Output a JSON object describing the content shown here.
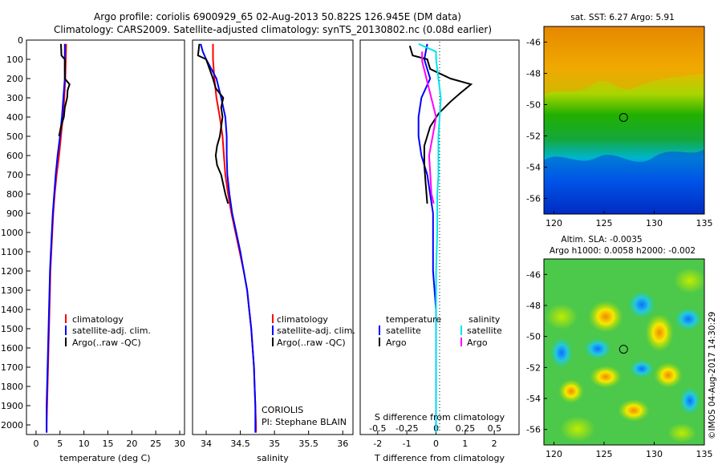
{
  "title_line1": "Argo profile: coriolis 6900929_65 02-Aug-2013 50.822S 126.945E (DM data)",
  "title_line2": "Climatology: CARS2009. Satellite-adjusted climatology: synTS_20130802.nc (0.08d earlier)",
  "colors": {
    "climatology": "#ff0000",
    "satellite": "#0000ff",
    "argo": "#000000",
    "salinity_satellite": "#00e5ee",
    "salinity_argo": "#ff00ff"
  },
  "chart_data": [
    {
      "type": "line",
      "panel": "temperature",
      "xlabel": "temperature (deg C)",
      "xlim": [
        -2,
        31
      ],
      "ylim": [
        2050,
        0
      ],
      "y_inverted": true,
      "xticks": [
        0,
        5,
        10,
        15,
        20,
        25,
        30
      ],
      "yticks": [
        0,
        100,
        200,
        300,
        400,
        500,
        600,
        700,
        800,
        900,
        1000,
        1100,
        1200,
        1300,
        1400,
        1500,
        1600,
        1700,
        1800,
        1900,
        2000
      ],
      "legend": [
        "climatology",
        "satellite-adj. clim.",
        "Argo(..raw -QC)"
      ],
      "series": [
        {
          "name": "climatology",
          "color": "#ff0000",
          "points": [
            [
              6.3,
              20
            ],
            [
              6.2,
              100
            ],
            [
              6.1,
              200
            ],
            [
              5.9,
              300
            ],
            [
              5.6,
              400
            ],
            [
              5.2,
              500
            ],
            [
              4.8,
              600
            ],
            [
              4.3,
              700
            ],
            [
              3.9,
              800
            ],
            [
              3.6,
              900
            ],
            [
              3.4,
              1000
            ],
            [
              3.2,
              1100
            ],
            [
              3.0,
              1200
            ],
            [
              2.9,
              1300
            ],
            [
              2.8,
              1400
            ],
            [
              2.7,
              1500
            ],
            [
              2.6,
              1600
            ],
            [
              2.5,
              1700
            ],
            [
              2.4,
              1800
            ],
            [
              2.3,
              1900
            ],
            [
              2.2,
              2000
            ],
            [
              2.2,
              2040
            ]
          ]
        },
        {
          "name": "satellite-adj. clim.",
          "color": "#0000ff",
          "points": [
            [
              6.0,
              20
            ],
            [
              6.0,
              100
            ],
            [
              6.0,
              200
            ],
            [
              5.7,
              300
            ],
            [
              5.4,
              400
            ],
            [
              5.0,
              500
            ],
            [
              4.5,
              600
            ],
            [
              4.1,
              700
            ],
            [
              3.8,
              800
            ],
            [
              3.5,
              900
            ],
            [
              3.3,
              1000
            ],
            [
              3.1,
              1100
            ],
            [
              2.9,
              1200
            ],
            [
              2.8,
              1300
            ],
            [
              2.7,
              1400
            ],
            [
              2.6,
              1500
            ],
            [
              2.5,
              1600
            ],
            [
              2.4,
              1700
            ],
            [
              2.3,
              1800
            ],
            [
              2.2,
              1900
            ],
            [
              2.2,
              2000
            ],
            [
              2.2,
              2040
            ]
          ]
        },
        {
          "name": "Argo(..raw -QC)",
          "color": "#000000",
          "points": [
            [
              5.2,
              20
            ],
            [
              5.3,
              80
            ],
            [
              6.0,
              100
            ],
            [
              6.0,
              200
            ],
            [
              7.0,
              230
            ],
            [
              6.6,
              260
            ],
            [
              6.5,
              300
            ],
            [
              6.0,
              350
            ],
            [
              5.8,
              400
            ],
            [
              5.2,
              450
            ],
            [
              4.8,
              500
            ]
          ]
        }
      ],
      "annotations": []
    },
    {
      "type": "line",
      "panel": "salinity",
      "xlabel": "salinity",
      "xlim": [
        33.8,
        36.15
      ],
      "ylim": [
        2050,
        0
      ],
      "y_inverted": true,
      "xticks": [
        34,
        34.5,
        35,
        35.5,
        36
      ],
      "legend": [
        "climatology",
        "satellite-adj. clim.",
        "Argo(..raw -QC)"
      ],
      "series": [
        {
          "name": "climatology",
          "color": "#ff0000",
          "points": [
            [
              34.1,
              20
            ],
            [
              34.1,
              100
            ],
            [
              34.12,
              200
            ],
            [
              34.15,
              300
            ],
            [
              34.2,
              400
            ],
            [
              34.24,
              500
            ],
            [
              34.26,
              600
            ],
            [
              34.28,
              700
            ],
            [
              34.32,
              800
            ],
            [
              34.37,
              900
            ],
            [
              34.43,
              1000
            ],
            [
              34.49,
              1100
            ],
            [
              34.55,
              1200
            ],
            [
              34.6,
              1300
            ],
            [
              34.63,
              1400
            ],
            [
              34.66,
              1500
            ],
            [
              34.68,
              1600
            ],
            [
              34.7,
              1700
            ],
            [
              34.71,
              1800
            ],
            [
              34.72,
              1900
            ],
            [
              34.73,
              2000
            ],
            [
              34.73,
              2040
            ]
          ]
        },
        {
          "name": "satellite-adj. clim.",
          "color": "#0000ff",
          "points": [
            [
              33.92,
              20
            ],
            [
              33.95,
              60
            ],
            [
              34.0,
              100
            ],
            [
              34.15,
              200
            ],
            [
              34.22,
              300
            ],
            [
              34.28,
              400
            ],
            [
              34.3,
              500
            ],
            [
              34.3,
              600
            ],
            [
              34.31,
              700
            ],
            [
              34.34,
              800
            ],
            [
              34.38,
              900
            ],
            [
              34.44,
              1000
            ],
            [
              34.5,
              1100
            ],
            [
              34.55,
              1200
            ],
            [
              34.6,
              1300
            ],
            [
              34.63,
              1400
            ],
            [
              34.66,
              1500
            ],
            [
              34.68,
              1600
            ],
            [
              34.7,
              1700
            ],
            [
              34.71,
              1800
            ],
            [
              34.72,
              1900
            ],
            [
              34.72,
              2000
            ],
            [
              34.72,
              2040
            ]
          ]
        },
        {
          "name": "Argo(..raw -QC)",
          "color": "#000000",
          "points": [
            [
              33.9,
              20
            ],
            [
              33.88,
              80
            ],
            [
              34.0,
              100
            ],
            [
              34.1,
              200
            ],
            [
              34.14,
              250
            ],
            [
              34.25,
              300
            ],
            [
              34.22,
              350
            ],
            [
              34.24,
              400
            ],
            [
              34.2,
              500
            ],
            [
              34.16,
              550
            ],
            [
              34.14,
              600
            ],
            [
              34.16,
              650
            ],
            [
              34.22,
              700
            ],
            [
              34.28,
              800
            ],
            [
              34.32,
              850
            ]
          ]
        }
      ],
      "annotations": [
        "CORIOLIS",
        "PI: Stephane BLAIN"
      ]
    },
    {
      "type": "line",
      "panel": "differences",
      "xlabel_bottom": "T difference from climatology",
      "xlabel_top": "S difference from climatology",
      "xlim_T": [
        -2.6,
        2.85
      ],
      "xticks_T": [
        -2,
        -1,
        0,
        1,
        2
      ],
      "xlim_S": [
        -0.65,
        0.71
      ],
      "xticks_S": [
        -0.5,
        -0.25,
        0,
        0.25,
        0.5
      ],
      "legend_left_header": "temperature",
      "legend_right_header": "salinity",
      "legend_left": [
        "satellite",
        "Argo"
      ],
      "legend_right": [
        "satellite",
        "Argo"
      ],
      "series": [
        {
          "name": "satellite",
          "quantity": "temperature",
          "color": "#0000ff",
          "points": [
            [
              -0.3,
              20
            ],
            [
              -0.4,
              100
            ],
            [
              -0.2,
              200
            ],
            [
              -0.5,
              300
            ],
            [
              -0.6,
              400
            ],
            [
              -0.6,
              500
            ],
            [
              -0.5,
              600
            ],
            [
              -0.3,
              700
            ],
            [
              -0.2,
              800
            ],
            [
              -0.1,
              900
            ],
            [
              -0.1,
              1000
            ],
            [
              -0.1,
              1100
            ],
            [
              -0.1,
              1200
            ],
            [
              0,
              1400
            ],
            [
              0,
              1600
            ],
            [
              0,
              1800
            ],
            [
              0,
              2000
            ],
            [
              0,
              2040
            ]
          ]
        },
        {
          "name": "Argo",
          "quantity": "temperature",
          "color": "#000000",
          "points": [
            [
              -0.9,
              30
            ],
            [
              -0.8,
              80
            ],
            [
              -0.3,
              100
            ],
            [
              -0.2,
              150
            ],
            [
              0.5,
              200
            ],
            [
              1.2,
              230
            ],
            [
              0.8,
              280
            ],
            [
              0.5,
              320
            ],
            [
              0.1,
              380
            ],
            [
              -0.2,
              450
            ],
            [
              -0.4,
              550
            ],
            [
              -0.4,
              650
            ],
            [
              -0.35,
              750
            ],
            [
              -0.3,
              850
            ]
          ]
        },
        {
          "name": "satellite",
          "quantity": "salinity",
          "color": "#00e5ee",
          "points": [
            [
              -0.15,
              20
            ],
            [
              0.0,
              60
            ],
            [
              0.0,
              100
            ],
            [
              0.02,
              200
            ],
            [
              0.04,
              300
            ],
            [
              0.03,
              400
            ],
            [
              0.02,
              500
            ],
            [
              0.02,
              600
            ],
            [
              0.02,
              700
            ],
            [
              0.01,
              800
            ],
            [
              0.01,
              1000
            ],
            [
              0.0,
              1200
            ],
            [
              0.0,
              1500
            ],
            [
              0.0,
              1800
            ],
            [
              0.0,
              2040
            ]
          ]
        },
        {
          "name": "Argo",
          "quantity": "salinity",
          "color": "#ff00ff",
          "points": [
            [
              -0.12,
              60
            ],
            [
              -0.12,
              110
            ],
            [
              0.0,
              400
            ],
            [
              -0.03,
              500
            ],
            [
              -0.06,
              600
            ],
            [
              -0.05,
              700
            ],
            [
              -0.04,
              800
            ],
            [
              -0.02,
              850
            ]
          ]
        }
      ],
      "annotations": []
    },
    {
      "type": "heatmap",
      "panel": "sst_map",
      "title": "sat. SST: 6.27 Argo: 5.91",
      "xlim": [
        119,
        135
      ],
      "ylim": [
        -57,
        -45
      ],
      "xticks": [
        120,
        125,
        130,
        135
      ],
      "yticks": [
        -46,
        -48,
        -50,
        -52,
        -54,
        -56
      ],
      "marker": {
        "lon": 126.945,
        "lat": -50.822
      }
    },
    {
      "type": "heatmap",
      "panel": "sla_map",
      "title_line1": "Altim. SLA: -0.0035",
      "title_line2": "Argo h1000: 0.0058 h2000: -0.002",
      "xlim": [
        119,
        135
      ],
      "ylim": [
        -57,
        -45
      ],
      "xticks": [
        120,
        125,
        130,
        135
      ],
      "yticks": [
        -46,
        -48,
        -50,
        -52,
        -54,
        -56
      ],
      "marker": {
        "lon": 126.945,
        "lat": -50.822
      }
    }
  ],
  "footer_stamp": "©IMOS 04-Aug-2017 14:30:29"
}
